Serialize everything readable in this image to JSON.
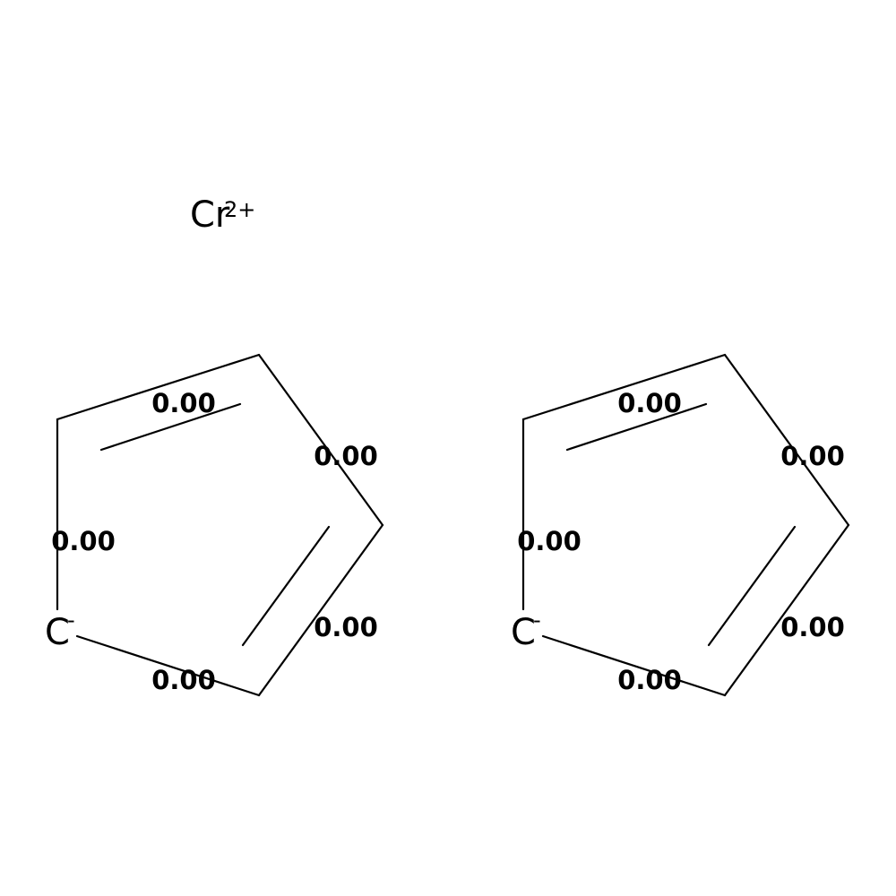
{
  "ion": {
    "symbol": "Cr",
    "charge": "2+"
  },
  "molecules": [
    {
      "carbanion": {
        "symbol": "C",
        "charge": "-"
      },
      "bond_labels": [
        "0.00",
        "0.00",
        "0.00",
        "0.00",
        "0.00"
      ]
    },
    {
      "carbanion": {
        "symbol": "C",
        "charge": "-"
      },
      "bond_labels": [
        "0.00",
        "0.00",
        "0.00",
        "0.00",
        "0.00"
      ]
    }
  ]
}
